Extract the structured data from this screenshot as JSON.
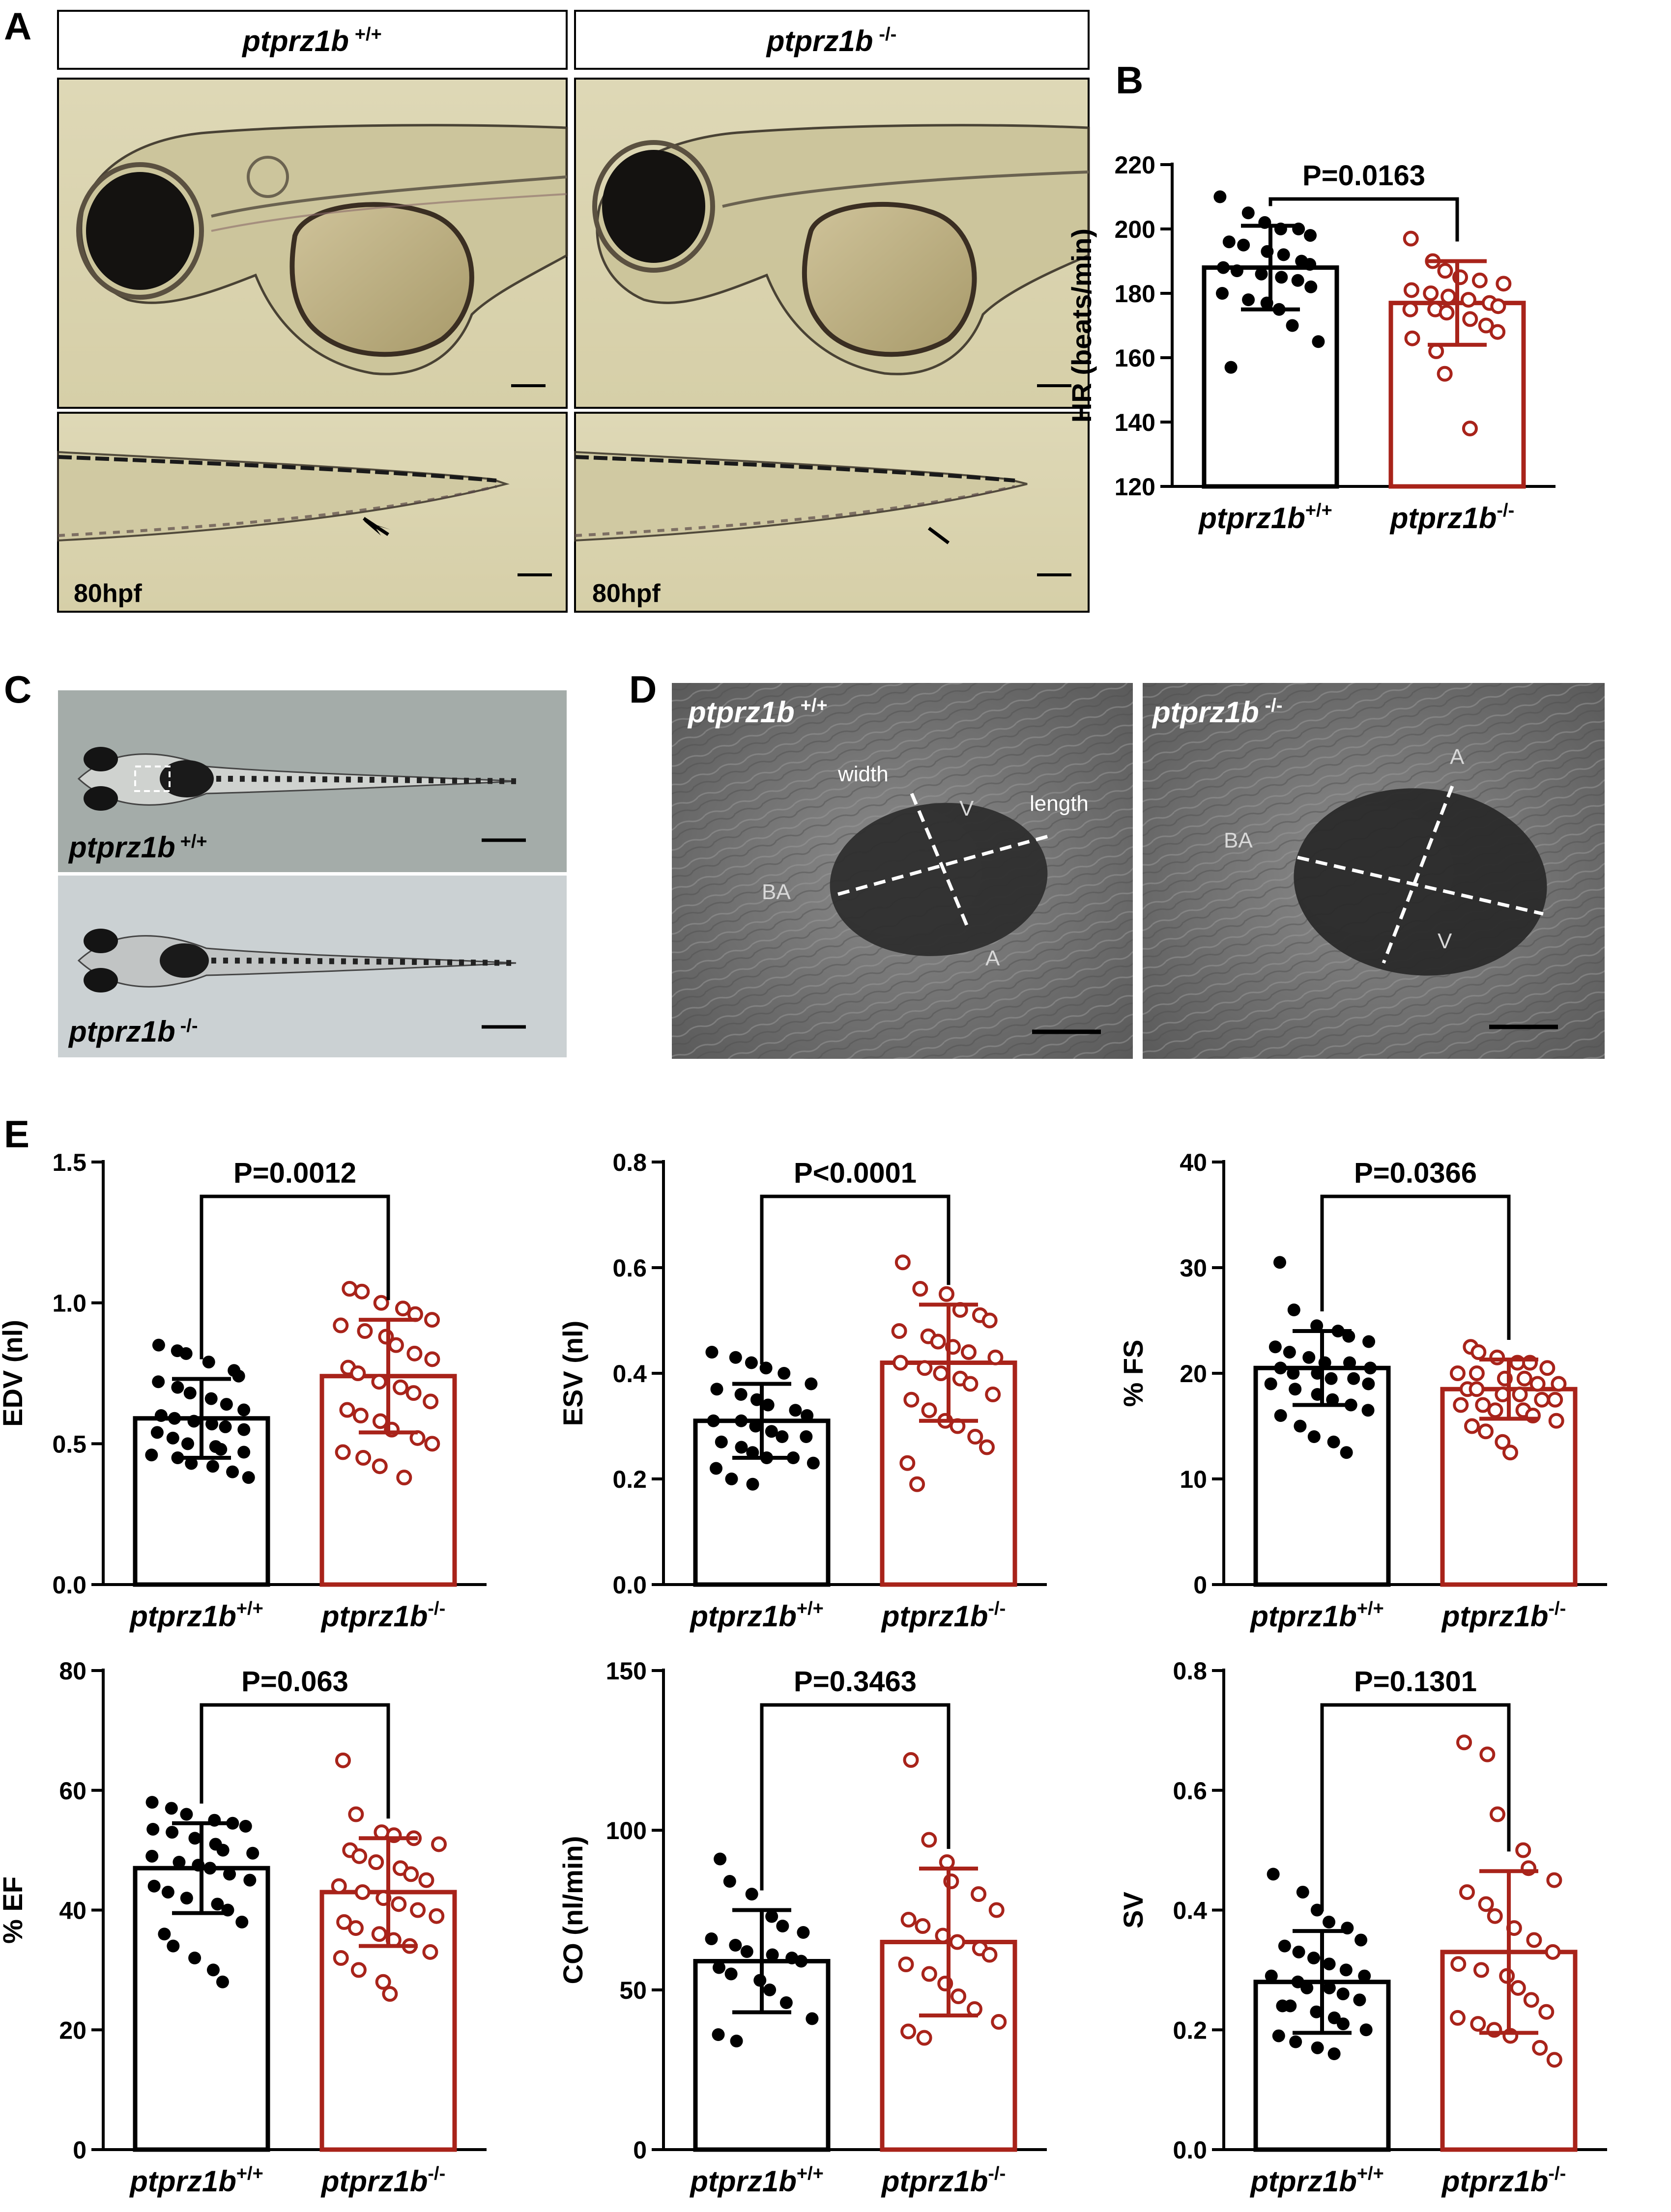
{
  "panel_labels": [
    "A",
    "B",
    "C",
    "D",
    "E"
  ],
  "genotypes": {
    "wt": {
      "name": "ptprz1b",
      "sup": "+/+"
    },
    "ko": {
      "name": "ptprz1b",
      "sup": "-/-"
    }
  },
  "colors": {
    "wt": "#000000",
    "ko": "#a8231a"
  },
  "panel_a": {
    "stage_labels": [
      "80hpf",
      "80hpf"
    ]
  },
  "panel_d": {
    "wt_labels": {
      "width": "width",
      "length": "length",
      "v": "V",
      "ba": "BA",
      "a": "A"
    },
    "ko_labels": {
      "ba": "BA",
      "a": "A",
      "v": "V"
    }
  },
  "chart_data": [
    {
      "id": "HR",
      "panel": "B",
      "type": "bar",
      "ylabel": "HR (beats/min)",
      "ylim": [
        120,
        220
      ],
      "yticks": [
        120,
        140,
        160,
        180,
        200,
        220
      ],
      "categories": [
        "ptprz1b+/+",
        "ptprz1b-/-"
      ],
      "p_value": "P=0.0163",
      "series": [
        {
          "name": "ptprz1b+/+",
          "mean": 188,
          "sd": 13,
          "points": [
            210,
            205,
            202,
            200,
            200,
            198,
            196,
            195,
            193,
            192,
            190,
            189,
            188,
            187,
            186,
            185,
            184,
            182,
            180,
            178,
            177,
            175,
            170,
            165,
            157
          ]
        },
        {
          "name": "ptprz1b-/-",
          "mean": 177,
          "sd": 13,
          "points": [
            197,
            190,
            187,
            185,
            184,
            183,
            181,
            180,
            179,
            178,
            177,
            176,
            175,
            175,
            174,
            172,
            170,
            168,
            166,
            162,
            155,
            138
          ]
        }
      ]
    },
    {
      "id": "EDV",
      "panel": "E",
      "type": "bar",
      "ylabel": "EDV (nl)",
      "ylim": [
        0,
        1.5
      ],
      "yticks": [
        0.0,
        0.5,
        1.0,
        1.5
      ],
      "categories": [
        "ptprz1b+/+",
        "ptprz1b-/-"
      ],
      "p_value": "P=0.0012",
      "series": [
        {
          "name": "ptprz1b+/+",
          "mean": 0.59,
          "sd": 0.14,
          "points": [
            0.85,
            0.83,
            0.82,
            0.79,
            0.76,
            0.74,
            0.72,
            0.7,
            0.68,
            0.66,
            0.64,
            0.62,
            0.6,
            0.59,
            0.58,
            0.57,
            0.56,
            0.55,
            0.54,
            0.52,
            0.5,
            0.49,
            0.48,
            0.47,
            0.46,
            0.45,
            0.43,
            0.42,
            0.4,
            0.38
          ]
        },
        {
          "name": "ptprz1b-/-",
          "mean": 0.74,
          "sd": 0.2,
          "points": [
            1.05,
            1.04,
            1.0,
            0.98,
            0.96,
            0.94,
            0.92,
            0.9,
            0.88,
            0.85,
            0.82,
            0.8,
            0.77,
            0.75,
            0.72,
            0.7,
            0.68,
            0.65,
            0.62,
            0.6,
            0.58,
            0.55,
            0.52,
            0.5,
            0.47,
            0.45,
            0.42,
            0.38
          ]
        }
      ]
    },
    {
      "id": "ESV",
      "panel": "E",
      "type": "bar",
      "ylabel": "ESV (nl)",
      "ylim": [
        0,
        0.8
      ],
      "yticks": [
        0.0,
        0.2,
        0.4,
        0.6,
        0.8
      ],
      "categories": [
        "ptprz1b+/+",
        "ptprz1b-/-"
      ],
      "p_value": "P<0.0001",
      "series": [
        {
          "name": "ptprz1b+/+",
          "mean": 0.31,
          "sd": 0.07,
          "points": [
            0.44,
            0.43,
            0.42,
            0.41,
            0.4,
            0.38,
            0.37,
            0.36,
            0.35,
            0.34,
            0.33,
            0.32,
            0.31,
            0.31,
            0.3,
            0.29,
            0.28,
            0.28,
            0.27,
            0.26,
            0.25,
            0.24,
            0.24,
            0.23,
            0.22,
            0.2,
            0.19
          ]
        },
        {
          "name": "ptprz1b-/-",
          "mean": 0.42,
          "sd": 0.11,
          "points": [
            0.61,
            0.56,
            0.55,
            0.52,
            0.51,
            0.5,
            0.48,
            0.47,
            0.46,
            0.45,
            0.44,
            0.43,
            0.42,
            0.41,
            0.4,
            0.39,
            0.38,
            0.36,
            0.35,
            0.33,
            0.31,
            0.3,
            0.28,
            0.26,
            0.23,
            0.19
          ]
        }
      ]
    },
    {
      "id": "FS",
      "panel": "E",
      "type": "bar",
      "ylabel": "% FS",
      "ylim": [
        0,
        40
      ],
      "yticks": [
        0,
        10,
        20,
        30,
        40
      ],
      "categories": [
        "ptprz1b+/+",
        "ptprz1b-/-"
      ],
      "p_value": "P=0.0366",
      "series": [
        {
          "name": "ptprz1b+/+",
          "mean": 20.5,
          "sd": 3.5,
          "points": [
            30.5,
            26,
            24.5,
            24,
            23.5,
            23,
            22.5,
            22,
            21.5,
            21,
            21,
            20.5,
            20.5,
            20,
            20,
            19.5,
            19.5,
            19,
            19,
            18.5,
            18,
            17.5,
            17,
            16.5,
            16,
            15,
            14,
            13.5,
            12.5
          ]
        },
        {
          "name": "ptprz1b-/-",
          "mean": 18.5,
          "sd": 2.8,
          "points": [
            22.5,
            22,
            21.5,
            21,
            21,
            20.5,
            20,
            20,
            19.5,
            19.5,
            19,
            19,
            18.5,
            18.5,
            18,
            18,
            17.5,
            17.5,
            17,
            17,
            16.5,
            16.5,
            16,
            15.5,
            15,
            14.5,
            13.5,
            12.5
          ]
        }
      ]
    },
    {
      "id": "EF",
      "panel": "E",
      "type": "bar",
      "ylabel": "% EF",
      "ylim": [
        0,
        80
      ],
      "yticks": [
        0,
        20,
        40,
        60,
        80
      ],
      "categories": [
        "ptprz1b+/+",
        "ptprz1b-/-"
      ],
      "p_value": "P=0.063",
      "series": [
        {
          "name": "ptprz1b+/+",
          "mean": 47,
          "sd": 7.5,
          "points": [
            58,
            57,
            56,
            55,
            54.5,
            54,
            53.5,
            53,
            52,
            51,
            50,
            49.5,
            49,
            48,
            47.5,
            47,
            46,
            45,
            44,
            43,
            42,
            41,
            40,
            38,
            36,
            34,
            32,
            30,
            28
          ]
        },
        {
          "name": "ptprz1b-/-",
          "mean": 43,
          "sd": 9,
          "points": [
            65,
            56,
            53,
            52.5,
            52,
            51,
            50,
            49,
            48,
            47,
            46,
            45,
            44,
            43,
            42,
            41,
            40,
            39,
            38,
            37,
            36,
            35,
            34,
            33,
            32,
            30,
            28,
            26
          ]
        }
      ]
    },
    {
      "id": "CO",
      "panel": "E",
      "type": "bar",
      "ylabel": "CO (nl/min)",
      "ylim": [
        0,
        150
      ],
      "yticks": [
        0,
        50,
        100,
        150
      ],
      "categories": [
        "ptprz1b+/+",
        "ptprz1b-/-"
      ],
      "p_value": "P=0.3463",
      "series": [
        {
          "name": "ptprz1b+/+",
          "mean": 59,
          "sd": 16,
          "points": [
            91,
            84,
            80,
            73,
            70,
            68,
            66,
            64,
            62,
            61,
            60,
            59,
            57,
            55,
            53,
            50,
            46,
            41,
            36,
            34
          ]
        },
        {
          "name": "ptprz1b-/-",
          "mean": 65,
          "sd": 23,
          "points": [
            122,
            97,
            90,
            84,
            80,
            75,
            72,
            70,
            67,
            65,
            63,
            61,
            58,
            55,
            52,
            48,
            44,
            40,
            37,
            35
          ]
        }
      ]
    },
    {
      "id": "SV",
      "panel": "E",
      "type": "bar",
      "ylabel": "SV",
      "ylim": [
        0,
        0.8
      ],
      "yticks": [
        0.0,
        0.2,
        0.4,
        0.6,
        0.8
      ],
      "categories": [
        "ptprz1b+/+",
        "ptprz1b-/-"
      ],
      "p_value": "P=0.1301",
      "series": [
        {
          "name": "ptprz1b+/+",
          "mean": 0.28,
          "sd": 0.085,
          "points": [
            0.46,
            0.43,
            0.4,
            0.38,
            0.37,
            0.35,
            0.34,
            0.33,
            0.32,
            0.31,
            0.3,
            0.29,
            0.29,
            0.28,
            0.27,
            0.27,
            0.26,
            0.25,
            0.24,
            0.24,
            0.23,
            0.22,
            0.21,
            0.2,
            0.19,
            0.18,
            0.17,
            0.16
          ]
        },
        {
          "name": "ptprz1b-/-",
          "mean": 0.33,
          "sd": 0.135,
          "points": [
            0.68,
            0.66,
            0.56,
            0.5,
            0.47,
            0.45,
            0.43,
            0.41,
            0.39,
            0.37,
            0.35,
            0.33,
            0.31,
            0.3,
            0.29,
            0.27,
            0.25,
            0.23,
            0.22,
            0.21,
            0.2,
            0.19,
            0.17,
            0.15
          ]
        }
      ]
    }
  ]
}
